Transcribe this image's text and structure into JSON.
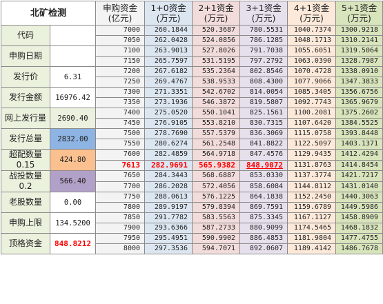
{
  "title": "北矿检测",
  "headers": [
    {
      "l1": "申购资金",
      "l2": "(亿元)"
    },
    {
      "l1": "1+0资金",
      "l2": "(万元)"
    },
    {
      "l1": "2+1资金",
      "l2": "(万元)"
    },
    {
      "l1": "3+1资金",
      "l2": "(万元)"
    },
    {
      "l1": "4+1资金",
      "l2": "(万元)"
    },
    {
      "l1": "5+1资金",
      "l2": "(万元)"
    }
  ],
  "labels": {
    "code": "代码",
    "date": "申购日期",
    "price": "发行价",
    "amount": "发行金额",
    "online": "网上发行量",
    "total": "发行总量",
    "over_l1": "超配数量",
    "over_l2": "0.15",
    "strat_l1": "战投数量",
    "strat_l2": "0.2",
    "old": "老股数量",
    "limit": "申购上限",
    "top": "顶格资金"
  },
  "values": {
    "code": "",
    "date": "",
    "price": "6.31",
    "amount": "16976.42",
    "online": "2690.40",
    "total": "2832.00",
    "over": "424.80",
    "strat": "566.40",
    "old": "0.00",
    "limit": "134.5200",
    "top": "848.8212"
  },
  "rows": [
    [
      "7000",
      "260.1844",
      "520.3687",
      "780.5531",
      "1040.7374",
      "1300.9218"
    ],
    [
      "7050",
      "262.0428",
      "524.0856",
      "786.1285",
      "1048.1713",
      "1310.2141"
    ],
    [
      "7100",
      "263.9013",
      "527.8026",
      "791.7038",
      "1055.6051",
      "1319.5064"
    ],
    [
      "7150",
      "265.7597",
      "531.5195",
      "797.2792",
      "1063.0390",
      "1328.7987"
    ],
    [
      "7200",
      "267.6182",
      "535.2364",
      "802.8546",
      "1070.4728",
      "1338.0910"
    ],
    [
      "7250",
      "269.4767",
      "538.9533",
      "808.4300",
      "1077.9066",
      "1347.3833"
    ],
    [
      "7300",
      "271.3351",
      "542.6702",
      "814.0054",
      "1085.3405",
      "1356.6756"
    ],
    [
      "7350",
      "273.1936",
      "546.3872",
      "819.5807",
      "1092.7743",
      "1365.9679"
    ],
    [
      "7400",
      "275.0520",
      "550.1041",
      "825.1561",
      "1100.2081",
      "1375.2602"
    ],
    [
      "7450",
      "276.9105",
      "553.8210",
      "830.7315",
      "1107.6420",
      "1384.5525"
    ],
    [
      "7500",
      "278.7690",
      "557.5379",
      "836.3069",
      "1115.0758",
      "1393.8448"
    ],
    [
      "7550",
      "280.6274",
      "561.2548",
      "841.8822",
      "1122.5097",
      "1403.1371"
    ],
    [
      "7600",
      "282.4859",
      "564.9718",
      "847.4576",
      "1129.9435",
      "1412.4294"
    ],
    [
      "7613",
      "282.9691",
      "565.9382",
      "848.9072",
      "1131.8763",
      "1414.8454"
    ],
    [
      "7650",
      "284.3443",
      "568.6887",
      "853.0330",
      "1137.3774",
      "1421.7217"
    ],
    [
      "7700",
      "286.2028",
      "572.4056",
      "858.6084",
      "1144.8112",
      "1431.0140"
    ],
    [
      "7750",
      "288.0613",
      "576.1225",
      "864.1838",
      "1152.2450",
      "1440.3063"
    ],
    [
      "7800",
      "289.9197",
      "579.8394",
      "869.7591",
      "1159.6789",
      "1449.5986"
    ],
    [
      "7850",
      "291.7782",
      "583.5563",
      "875.3345",
      "1167.1127",
      "1458.8909"
    ],
    [
      "7900",
      "293.6366",
      "587.2733",
      "880.9099",
      "1174.5465",
      "1468.1832"
    ],
    [
      "7950",
      "295.4951",
      "590.9902",
      "886.4853",
      "1181.9804",
      "1477.4755"
    ],
    [
      "8000",
      "297.3536",
      "594.7071",
      "892.0607",
      "1189.4142",
      "1486.7678"
    ]
  ]
}
